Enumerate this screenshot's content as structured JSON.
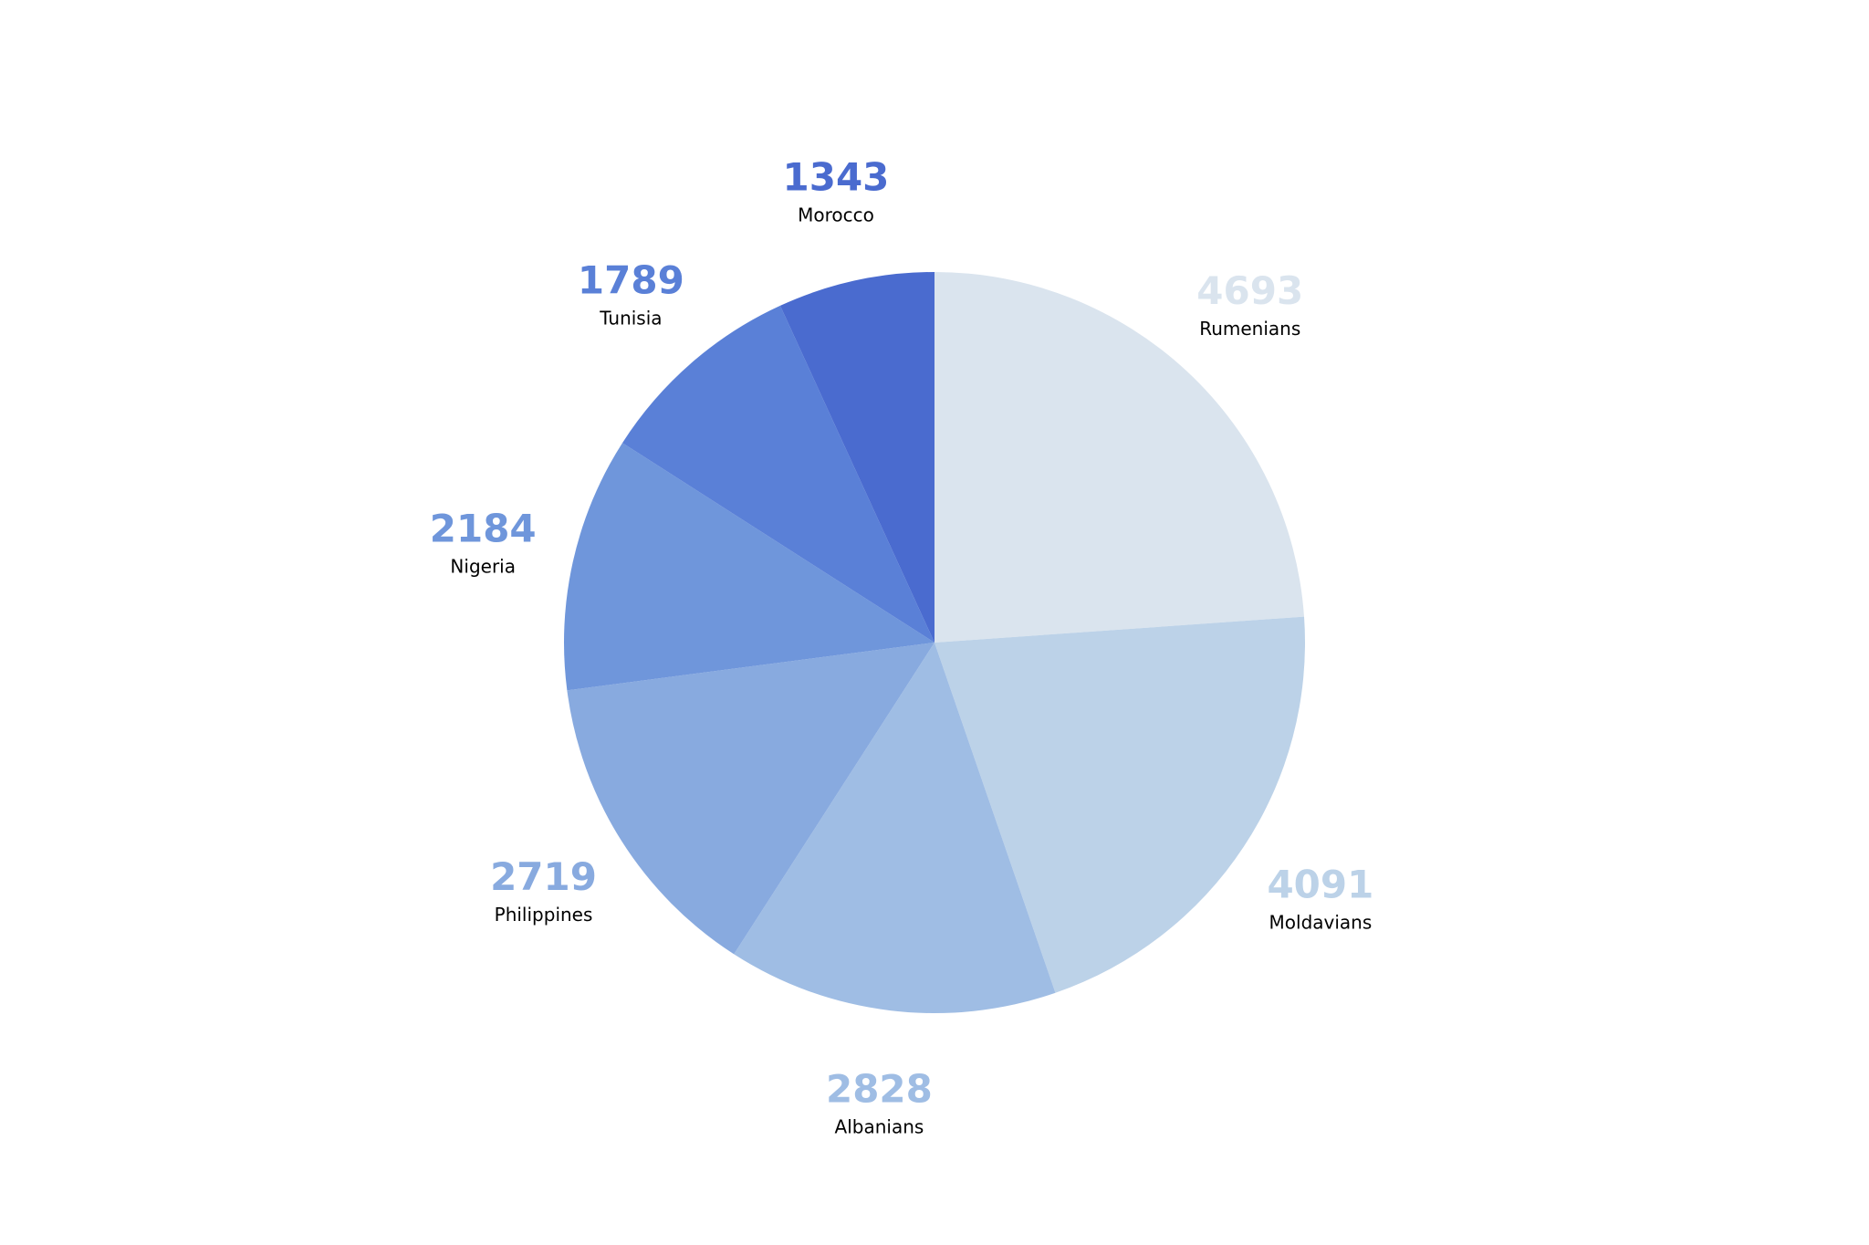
{
  "chart_data": {
    "type": "pie",
    "categories": [
      "Rumenians",
      "Moldavians",
      "Albanians",
      "Philippines",
      "Nigeria",
      "Tunisia",
      "Morocco"
    ],
    "values": [
      4693,
      4091,
      2828,
      2719,
      2184,
      1789,
      1343
    ],
    "colors": [
      "#dae4ee",
      "#bcd2e8",
      "#9fbde4",
      "#88aadf",
      "#6f96db",
      "#5a80d7",
      "#4a6bcf"
    ]
  }
}
